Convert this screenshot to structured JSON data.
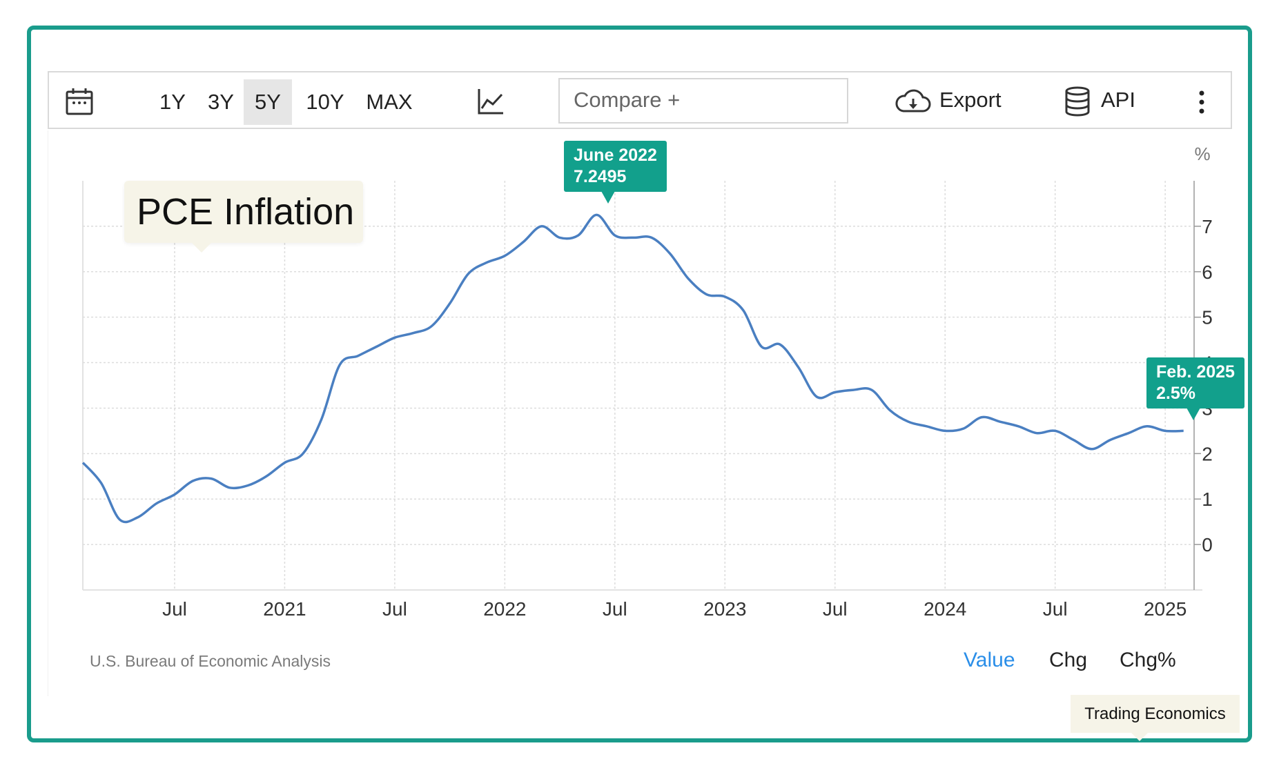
{
  "toolbar": {
    "ranges": [
      "1Y",
      "3Y",
      "5Y",
      "10Y",
      "MAX"
    ],
    "active_range": "5Y",
    "compare_placeholder": "Compare +",
    "export_label": "Export",
    "api_label": "API"
  },
  "footer": {
    "source": "U.S. Bureau of Economic Analysis",
    "modes": [
      "Value",
      "Chg",
      "Chg%"
    ],
    "active_mode": "Value",
    "credit": "Trading Economics"
  },
  "colors": {
    "frame": "#1a9c8c",
    "line": "#4a7fc1",
    "tooltip": "#12a08c",
    "active_mode": "#2a8ee8"
  },
  "tooltips": {
    "peak": {
      "date": "June 2022",
      "value": "7.2495"
    },
    "latest": {
      "date": "Feb. 2025",
      "value": "2.5%"
    }
  },
  "chart_data": {
    "type": "line",
    "title": "PCE Inflation",
    "unit_label": "%",
    "ylim": [
      -1,
      8
    ],
    "yticks": [
      0,
      1,
      2,
      3,
      4,
      5,
      6,
      7
    ],
    "x_tick_labels": [
      {
        "t": 2020.5,
        "label": "Jul"
      },
      {
        "t": 2021.0,
        "label": "2021"
      },
      {
        "t": 2021.5,
        "label": "Jul"
      },
      {
        "t": 2022.0,
        "label": "2022"
      },
      {
        "t": 2022.5,
        "label": "Jul"
      },
      {
        "t": 2023.0,
        "label": "2023"
      },
      {
        "t": 2023.5,
        "label": "Jul"
      },
      {
        "t": 2024.0,
        "label": "2024"
      },
      {
        "t": 2024.5,
        "label": "Jul"
      },
      {
        "t": 2025.0,
        "label": "2025"
      }
    ],
    "xlim": [
      2020.083,
      2025.125
    ],
    "grid": true,
    "series": [
      {
        "points": [
          [
            "2020-02",
            1.8
          ],
          [
            "2020-03",
            1.35
          ],
          [
            "2020-04",
            0.55
          ],
          [
            "2020-05",
            0.6
          ],
          [
            "2020-06",
            0.9
          ],
          [
            "2020-07",
            1.1
          ],
          [
            "2020-08",
            1.4
          ],
          [
            "2020-09",
            1.45
          ],
          [
            "2020-10",
            1.25
          ],
          [
            "2020-11",
            1.3
          ],
          [
            "2020-12",
            1.5
          ],
          [
            "2021-01",
            1.8
          ],
          [
            "2021-02",
            2.0
          ],
          [
            "2021-03",
            2.75
          ],
          [
            "2021-04",
            3.95
          ],
          [
            "2021-05",
            4.15
          ],
          [
            "2021-06",
            4.35
          ],
          [
            "2021-07",
            4.55
          ],
          [
            "2021-08",
            4.65
          ],
          [
            "2021-09",
            4.8
          ],
          [
            "2021-10",
            5.3
          ],
          [
            "2021-11",
            5.95
          ],
          [
            "2021-12",
            6.2
          ],
          [
            "2022-01",
            6.35
          ],
          [
            "2022-02",
            6.65
          ],
          [
            "2022-03",
            7.0
          ],
          [
            "2022-04",
            6.75
          ],
          [
            "2022-05",
            6.8
          ],
          [
            "2022-06",
            7.25
          ],
          [
            "2022-07",
            6.8
          ],
          [
            "2022-08",
            6.75
          ],
          [
            "2022-09",
            6.75
          ],
          [
            "2022-10",
            6.4
          ],
          [
            "2022-11",
            5.85
          ],
          [
            "2022-12",
            5.5
          ],
          [
            "2023-01",
            5.45
          ],
          [
            "2023-02",
            5.15
          ],
          [
            "2023-03",
            4.35
          ],
          [
            "2023-04",
            4.4
          ],
          [
            "2023-05",
            3.9
          ],
          [
            "2023-06",
            3.25
          ],
          [
            "2023-07",
            3.35
          ],
          [
            "2023-08",
            3.4
          ],
          [
            "2023-09",
            3.4
          ],
          [
            "2023-10",
            2.95
          ],
          [
            "2023-11",
            2.7
          ],
          [
            "2023-12",
            2.6
          ],
          [
            "2024-01",
            2.5
          ],
          [
            "2024-02",
            2.55
          ],
          [
            "2024-03",
            2.8
          ],
          [
            "2024-04",
            2.7
          ],
          [
            "2024-05",
            2.6
          ],
          [
            "2024-06",
            2.45
          ],
          [
            "2024-07",
            2.5
          ],
          [
            "2024-08",
            2.3
          ],
          [
            "2024-09",
            2.1
          ],
          [
            "2024-10",
            2.3
          ],
          [
            "2024-11",
            2.45
          ],
          [
            "2024-12",
            2.6
          ],
          [
            "2025-01",
            2.5
          ],
          [
            "2025-02",
            2.5
          ]
        ]
      }
    ]
  }
}
